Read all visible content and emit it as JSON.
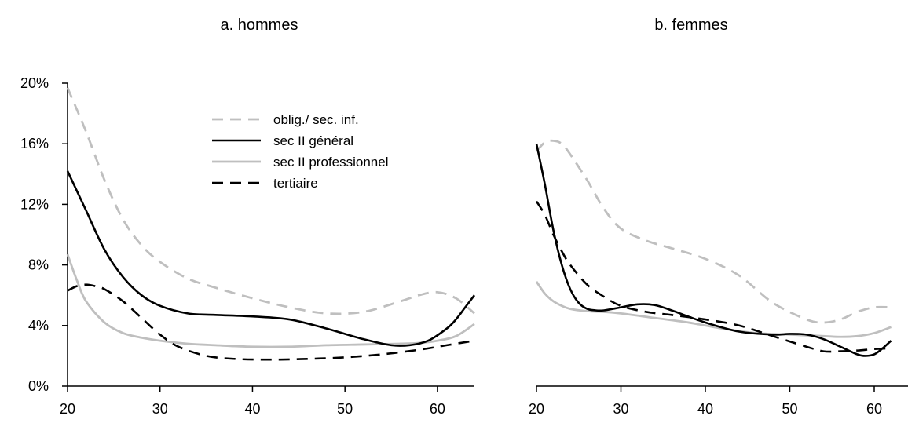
{
  "chart_data": {
    "type": "line",
    "y_ticks": [
      "0%",
      "4%",
      "8%",
      "12%",
      "16%",
      "20%"
    ],
    "x_ticks": [
      "20",
      "30",
      "40",
      "50",
      "60"
    ],
    "ylim": [
      0,
      20
    ],
    "xlim": [
      20,
      64
    ],
    "series_styles": [
      {
        "key": "oblig",
        "color": "#bfbfbf",
        "dash": "dashed"
      },
      {
        "key": "general",
        "color": "#000000",
        "dash": "solid"
      },
      {
        "key": "prof",
        "color": "#bfbfbf",
        "dash": "solid"
      },
      {
        "key": "tert",
        "color": "#000000",
        "dash": "dashed"
      }
    ],
    "legend": [
      {
        "name": "oblig./ sec. inf.",
        "color": "#bfbfbf",
        "dash": "dashed"
      },
      {
        "name": "sec II général",
        "color": "#000000",
        "dash": "solid"
      },
      {
        "name": "sec II professionnel",
        "color": "#bfbfbf",
        "dash": "solid"
      },
      {
        "name": "tertiaire",
        "color": "#000000",
        "dash": "dashed"
      }
    ],
    "legend_placement": "top-right of panel a",
    "panels": [
      {
        "title": "a.    hommes",
        "y_axis_visible": true,
        "series": [
          {
            "key": "oblig",
            "x": [
              20,
              22,
              24,
              26,
              28,
              30,
              33,
              36,
              40,
              44,
              48,
              52,
              56,
              58,
              60,
              62,
              64
            ],
            "y": [
              19.7,
              16.8,
              13.6,
              11.0,
              9.3,
              8.2,
              7.1,
              6.5,
              5.8,
              5.2,
              4.8,
              4.9,
              5.6,
              6.0,
              6.2,
              5.8,
              4.8
            ]
          },
          {
            "key": "general",
            "x": [
              20,
              22,
              24,
              26,
              28,
              30,
              33,
              36,
              40,
              44,
              48,
              52,
              55,
              57,
              59,
              61,
              62,
              63,
              64
            ],
            "y": [
              14.2,
              11.6,
              9.0,
              7.2,
              6.0,
              5.3,
              4.8,
              4.7,
              4.6,
              4.4,
              3.8,
              3.1,
              2.7,
              2.7,
              3.0,
              3.8,
              4.4,
              5.2,
              6.0
            ]
          },
          {
            "key": "prof",
            "x": [
              20,
              21,
              22,
              24,
              26,
              28,
              30,
              33,
              36,
              40,
              44,
              48,
              52,
              56,
              58,
              60,
              62,
              64
            ],
            "y": [
              8.7,
              7.0,
              5.6,
              4.2,
              3.5,
              3.2,
              3.0,
              2.8,
              2.7,
              2.6,
              2.6,
              2.7,
              2.75,
              2.8,
              2.85,
              3.0,
              3.3,
              4.1
            ]
          },
          {
            "key": "tert",
            "x": [
              20,
              21,
              22,
              23,
              24,
              26,
              28,
              30,
              32,
              35,
              38,
              42,
              46,
              50,
              54,
              58,
              61,
              64
            ],
            "y": [
              6.3,
              6.6,
              6.7,
              6.6,
              6.4,
              5.6,
              4.5,
              3.4,
              2.6,
              2.0,
              1.8,
              1.75,
              1.8,
              1.9,
              2.1,
              2.4,
              2.7,
              3.0
            ]
          }
        ]
      },
      {
        "title": "b.  femmes",
        "y_axis_visible": false,
        "series": [
          {
            "key": "oblig",
            "x": [
              20,
              21,
              22,
              23,
              24,
              26,
              28,
              30,
              33,
              36,
              40,
              44,
              48,
              52,
              54,
              56,
              58,
              60,
              62
            ],
            "y": [
              15.5,
              16.1,
              16.2,
              16.0,
              15.3,
              13.6,
              11.7,
              10.4,
              9.6,
              9.1,
              8.4,
              7.3,
              5.5,
              4.4,
              4.2,
              4.4,
              4.9,
              5.2,
              5.2
            ]
          },
          {
            "key": "general",
            "x": [
              20,
              21,
              22,
              23,
              24,
              25,
              26,
              27,
              28,
              30,
              32,
              34,
              36,
              40,
              44,
              48,
              50,
              52,
              54,
              56,
              58,
              59,
              60,
              61,
              62
            ],
            "y": [
              16.0,
              13.3,
              10.3,
              8.0,
              6.4,
              5.5,
              5.1,
              5.0,
              5.0,
              5.2,
              5.4,
              5.35,
              5.0,
              4.2,
              3.6,
              3.4,
              3.45,
              3.4,
              3.1,
              2.6,
              2.1,
              2.0,
              2.1,
              2.5,
              3.0
            ]
          },
          {
            "key": "prof",
            "x": [
              20,
              21,
              22,
              23,
              24,
              26,
              28,
              30,
              34,
              38,
              42,
              46,
              50,
              54,
              56,
              58,
              60,
              62
            ],
            "y": [
              6.9,
              6.1,
              5.6,
              5.3,
              5.1,
              4.95,
              4.9,
              4.8,
              4.5,
              4.2,
              3.8,
              3.5,
              3.4,
              3.3,
              3.25,
              3.3,
              3.5,
              3.9
            ]
          },
          {
            "key": "tert",
            "x": [
              20,
              21,
              22,
              23,
              24,
              26,
              28,
              30,
              33,
              36,
              40,
              44,
              48,
              52,
              54,
              56,
              58,
              60,
              62
            ],
            "y": [
              12.2,
              11.3,
              10.0,
              8.9,
              8.0,
              6.7,
              5.9,
              5.3,
              4.9,
              4.7,
              4.4,
              4.0,
              3.3,
              2.6,
              2.3,
              2.3,
              2.35,
              2.45,
              2.5
            ]
          }
        ]
      }
    ]
  }
}
